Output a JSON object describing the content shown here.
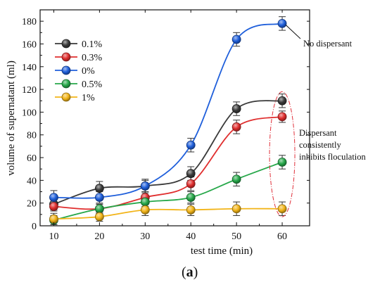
{
  "chart_data": {
    "type": "line",
    "xlabel": "test time (min)",
    "ylabel": "volume of supernatant (ml)",
    "x": [
      10,
      20,
      30,
      40,
      50,
      60
    ],
    "xticks": [
      10,
      20,
      30,
      40,
      50,
      60
    ],
    "yticks": [
      0,
      20,
      40,
      60,
      80,
      100,
      120,
      140,
      160,
      180
    ],
    "xlim": [
      7,
      66
    ],
    "ylim": [
      0,
      190
    ],
    "legend_position": "top-left",
    "series": [
      {
        "name": "0.1%",
        "color": "#3a3a3a",
        "values": [
          19,
          33,
          35,
          46,
          103,
          110
        ],
        "errors": [
          5,
          6,
          5,
          6,
          6,
          6
        ]
      },
      {
        "name": "0.3%",
        "color": "#e02e2e",
        "values": [
          17,
          15,
          25,
          37,
          87,
          96
        ],
        "errors": [
          4,
          4,
          5,
          6,
          6,
          5
        ]
      },
      {
        "name": "0%",
        "color": "#1f5fdb",
        "values": [
          25,
          25,
          35,
          71,
          164,
          178
        ],
        "errors": [
          6,
          5,
          6,
          6,
          6,
          6
        ]
      },
      {
        "name": "0.5%",
        "color": "#27a84a",
        "values": [
          5,
          15,
          21,
          25,
          41,
          56
        ],
        "errors": [
          4,
          4,
          4,
          5,
          6,
          6
        ]
      },
      {
        "name": "1%",
        "color": "#f2b418",
        "values": [
          6,
          8,
          14,
          14,
          15,
          15
        ],
        "errors": [
          5,
          4,
          5,
          5,
          6,
          6
        ]
      }
    ],
    "annotations": [
      {
        "text": "No dispersant"
      },
      {
        "lines": [
          "Dispersant",
          "consistently",
          "inhibits floculation"
        ]
      }
    ],
    "panel_label": {
      "open": "(",
      "letter": "a",
      "close": ")"
    }
  }
}
